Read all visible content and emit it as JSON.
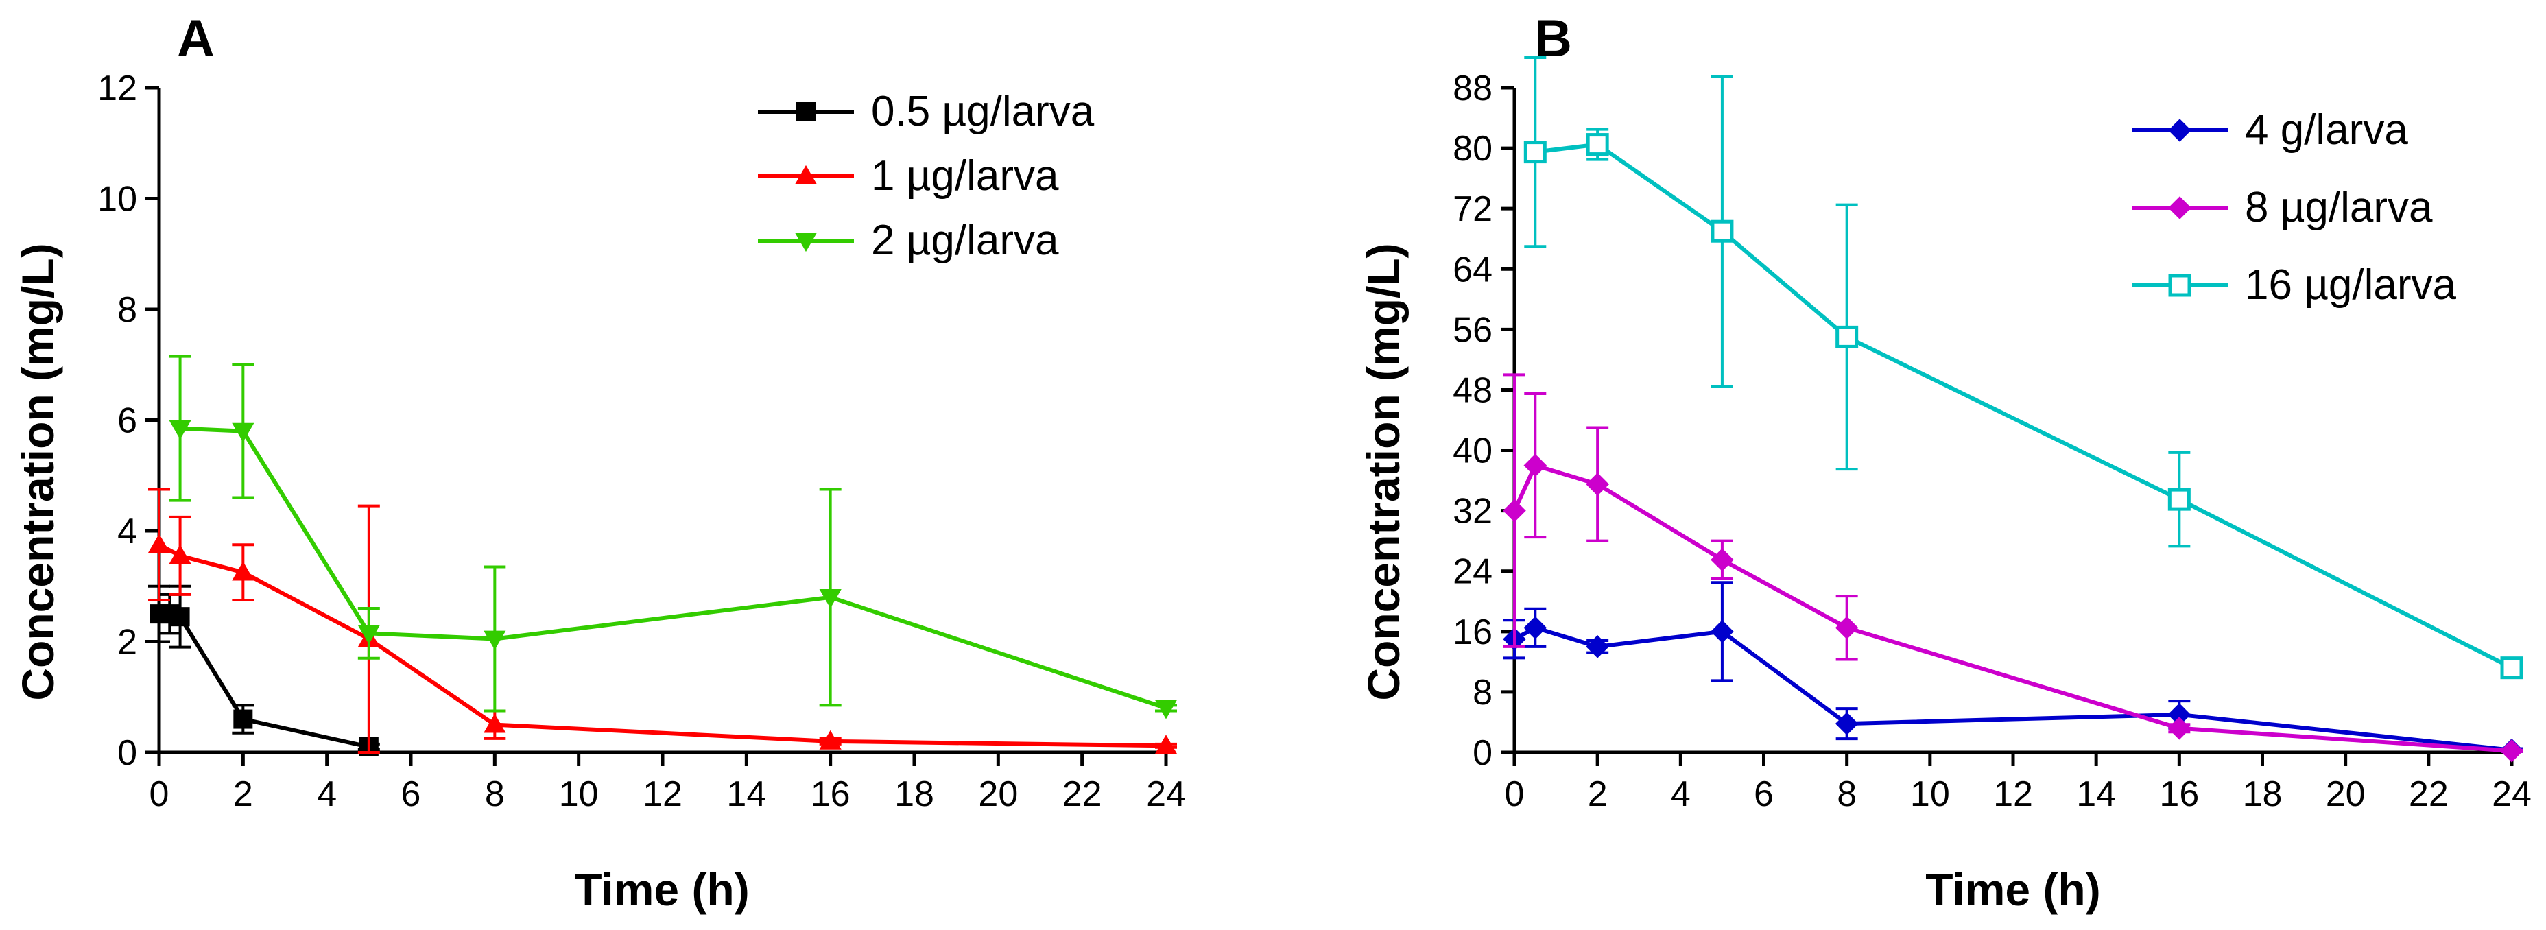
{
  "chart_data": [
    {
      "panel": "A",
      "type": "line",
      "title": "A",
      "xlabel": "Time (h)",
      "ylabel": "Concentration (mg/L)",
      "xlim": [
        0,
        24
      ],
      "ylim": [
        0,
        12
      ],
      "xticks": [
        0,
        2,
        4,
        6,
        8,
        10,
        12,
        14,
        16,
        18,
        20,
        22,
        24
      ],
      "yticks": [
        0,
        2,
        4,
        6,
        8,
        10,
        12
      ],
      "grid": false,
      "legend_position": "top-right",
      "series": [
        {
          "name": "0.5 µg/larva",
          "color": "#000000",
          "marker": "square",
          "x": [
            0,
            0.25,
            0.5,
            2,
            5
          ],
          "y": [
            2.5,
            2.5,
            2.45,
            0.6,
            0.1
          ],
          "err": [
            0.5,
            0.35,
            0.55,
            0.25,
            0.05
          ]
        },
        {
          "name": "1 µg/larva",
          "color": "#ff0000",
          "marker": "triangle-up",
          "x": [
            0,
            0.5,
            2,
            5,
            8,
            16,
            24
          ],
          "y": [
            3.75,
            3.55,
            3.25,
            2.05,
            0.5,
            0.2,
            0.12
          ],
          "err": [
            1.0,
            0.7,
            0.5,
            2.4,
            0.25,
            0.05,
            0.03
          ]
        },
        {
          "name": "2 µg/larva",
          "color": "#33cc00",
          "marker": "triangle-down",
          "x": [
            0.5,
            2,
            5,
            8,
            16,
            24
          ],
          "y": [
            5.85,
            5.8,
            2.15,
            2.05,
            2.8,
            0.8
          ],
          "err": [
            1.3,
            1.2,
            0.45,
            1.3,
            1.95,
            0.05
          ]
        }
      ]
    },
    {
      "panel": "B",
      "type": "line",
      "title": "B",
      "xlabel": "Time (h)",
      "ylabel": "Concentration (mg/L)",
      "xlim": [
        0,
        24
      ],
      "ylim": [
        0,
        88
      ],
      "xticks": [
        0,
        2,
        4,
        6,
        8,
        10,
        12,
        14,
        16,
        18,
        20,
        22,
        24
      ],
      "yticks": [
        0,
        8,
        16,
        24,
        32,
        40,
        48,
        56,
        64,
        72,
        80,
        88
      ],
      "grid": false,
      "legend_position": "top-right",
      "series": [
        {
          "name": "4 g/larva",
          "color": "#0000cc",
          "marker": "diamond",
          "x": [
            0,
            0.5,
            2,
            5,
            8,
            16,
            24
          ],
          "y": [
            15,
            16.5,
            14,
            16,
            3.8,
            5,
            0.3
          ],
          "err": [
            2.5,
            2.5,
            0.8,
            6.5,
            2.0,
            1.8,
            0.2
          ]
        },
        {
          "name": "8 µg/larva",
          "color": "#cc00cc",
          "marker": "diamond",
          "x": [
            0,
            0.5,
            2,
            5,
            8,
            16,
            24
          ],
          "y": [
            32,
            38,
            35.5,
            25.5,
            16.5,
            3.2,
            0.2
          ],
          "err": [
            18,
            9.5,
            7.5,
            2.5,
            4.2,
            0.5,
            0.1
          ]
        },
        {
          "name": "16 µg/larva",
          "color": "#00c0c0",
          "marker": "square-open",
          "x": [
            0.5,
            2,
            5,
            8,
            16,
            24
          ],
          "y": [
            79.5,
            80.5,
            69,
            55,
            33.5,
            11.2
          ],
          "err": [
            12.5,
            2.0,
            20.5,
            17.5,
            6.2,
            0.5
          ]
        }
      ]
    }
  ]
}
